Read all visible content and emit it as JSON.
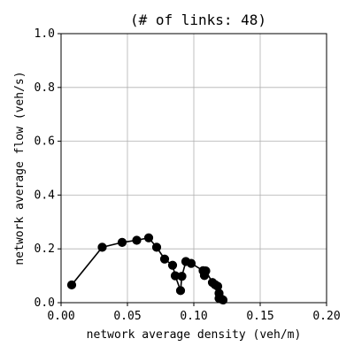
{
  "chart_data": {
    "type": "line",
    "title": "(# of links: 48)",
    "xlabel": "network average density (veh/m)",
    "ylabel": "network average flow (veh/s)",
    "xlim": [
      0.0,
      0.2
    ],
    "ylim": [
      0.0,
      1.0
    ],
    "xticks": [
      "0.00",
      "0.05",
      "0.10",
      "0.15",
      "0.20"
    ],
    "yticks": [
      "0.0",
      "0.2",
      "0.4",
      "0.6",
      "0.8",
      "1.0"
    ],
    "grid": true,
    "series": [
      {
        "x": [
          0.008,
          0.031,
          0.046,
          0.057,
          0.066,
          0.072,
          0.078,
          0.084,
          0.086,
          0.09,
          0.091,
          0.094,
          0.098,
          0.107,
          0.108,
          0.108,
          0.109,
          0.114,
          0.116,
          0.118,
          0.119,
          0.119,
          0.121,
          0.122
        ],
        "y": [
          0.066,
          0.206,
          0.224,
          0.232,
          0.241,
          0.206,
          0.162,
          0.139,
          0.1,
          0.045,
          0.098,
          0.153,
          0.146,
          0.119,
          0.102,
          0.101,
          0.118,
          0.075,
          0.067,
          0.061,
          0.035,
          0.016,
          0.013,
          0.01
        ],
        "color": "#000000",
        "marker": "circle"
      }
    ]
  }
}
